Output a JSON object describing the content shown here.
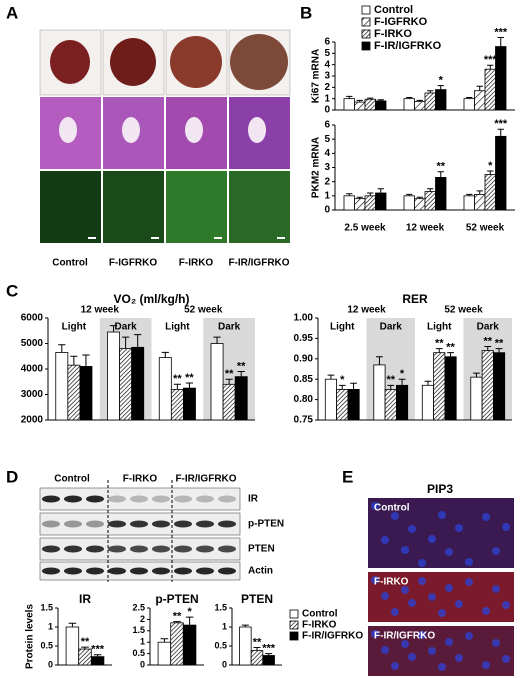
{
  "figure": {
    "panel_letters": [
      "A",
      "B",
      "C",
      "D",
      "E"
    ],
    "a_labels": [
      "Control",
      "F-IGFRKO",
      "F-IRKO",
      "F-IR/IGFRKO"
    ],
    "d_groups": [
      "Control",
      "F-IRKO",
      "F-IR/IGFRKO"
    ],
    "d_bands": [
      "IR",
      "p-PTEN",
      "PTEN",
      "Actin"
    ],
    "e_title": "PIP3",
    "e_labels": [
      "Control",
      "F-IRKO",
      "F-IR/IGFRKO"
    ]
  },
  "chart_data": [
    {
      "type": "bar",
      "y_label": "Ki67 mRNA",
      "ylim": [
        0,
        6
      ],
      "yticks": [
        0,
        1,
        2,
        3,
        4,
        5,
        6
      ],
      "legend": true,
      "series": [
        {
          "name": "Control",
          "color": "#ffffff",
          "values": [
            1.0,
            1.0,
            1.0
          ],
          "errors": [
            0.2,
            0.1,
            0.1
          ],
          "stars": [
            null,
            null,
            null
          ]
        },
        {
          "name": "F-IGFRKO",
          "color": "#ffffff",
          "pattern": "hatch-sparse",
          "values": [
            0.7,
            0.75,
            1.7
          ],
          "errors": [
            0.15,
            0.1,
            0.4
          ],
          "stars": [
            null,
            null,
            null
          ]
        },
        {
          "name": "F-IRKO",
          "color": "#ffffff",
          "pattern": "hatch-dense",
          "values": [
            0.95,
            1.5,
            3.6
          ],
          "errors": [
            0.1,
            0.2,
            0.35
          ],
          "stars": [
            null,
            null,
            "***"
          ]
        },
        {
          "name": "F-IR/IGFRKO",
          "color": "#000000",
          "values": [
            0.8,
            1.8,
            5.6
          ],
          "errors": [
            0.1,
            0.35,
            0.8
          ],
          "stars": [
            null,
            "*",
            "***"
          ]
        }
      ]
    },
    {
      "type": "bar",
      "y_label": "PKM2 mRNA",
      "categories": [
        "2.5 week",
        "12 week",
        "52 week"
      ],
      "ylim": [
        0,
        6
      ],
      "yticks": [
        0,
        1,
        2,
        3,
        4,
        5,
        6
      ],
      "series": [
        {
          "color": "#ffffff",
          "values": [
            1.0,
            1.0,
            1.0
          ],
          "errors": [
            0.15,
            0.1,
            0.1
          ],
          "stars": [
            null,
            null,
            null
          ]
        },
        {
          "color": "#ffffff",
          "pattern": "hatch-sparse",
          "values": [
            0.8,
            0.8,
            1.1
          ],
          "errors": [
            0.1,
            0.1,
            0.25
          ],
          "stars": [
            null,
            null,
            null
          ]
        },
        {
          "color": "#ffffff",
          "pattern": "hatch-dense",
          "values": [
            1.0,
            1.3,
            2.5
          ],
          "errors": [
            0.2,
            0.2,
            0.25
          ],
          "stars": [
            null,
            null,
            "*"
          ]
        },
        {
          "color": "#000000",
          "values": [
            1.2,
            2.3,
            5.2
          ],
          "errors": [
            0.3,
            0.4,
            0.5
          ],
          "stars": [
            null,
            "**",
            "***"
          ]
        }
      ]
    },
    {
      "type": "bar",
      "title": "VO₂ (ml/kg/h)",
      "categories": [
        "Light",
        "Dark",
        "Light",
        "Dark"
      ],
      "category_position": "top",
      "group_labels": [
        "12 week",
        "52 week"
      ],
      "shaded_categories": [
        false,
        true,
        false,
        true
      ],
      "ylim": [
        2000,
        6000
      ],
      "yticks": [
        2000,
        3000,
        4000,
        5000,
        6000
      ],
      "series": [
        {
          "color": "#ffffff",
          "values": [
            4650,
            5450,
            4450,
            5000
          ],
          "errors": [
            300,
            250,
            200,
            250
          ],
          "stars": [
            null,
            null,
            null,
            null
          ]
        },
        {
          "color": "#ffffff",
          "pattern": "hatch-dense",
          "values": [
            4150,
            4800,
            3200,
            3400
          ],
          "errors": [
            350,
            450,
            200,
            200
          ],
          "stars": [
            null,
            null,
            "**",
            "**"
          ]
        },
        {
          "color": "#000000",
          "values": [
            4100,
            4850,
            3250,
            3700
          ],
          "errors": [
            450,
            500,
            200,
            200
          ],
          "stars": [
            null,
            null,
            "**",
            "**"
          ]
        }
      ]
    },
    {
      "type": "bar",
      "title": "RER",
      "categories": [
        "Light",
        "Dark",
        "Light",
        "Dark"
      ],
      "category_position": "top",
      "group_labels": [
        "12 week",
        "52 week"
      ],
      "shaded_categories": [
        false,
        true,
        false,
        true
      ],
      "ylim": [
        0.75,
        1.0
      ],
      "yticks": [
        0.75,
        {
          "value": 0.8,
          "label": "0.80"
        },
        0.85,
        {
          "value": 0.9,
          "label": "0.90"
        },
        0.95,
        {
          "value": 1.0,
          "label": "1.00"
        }
      ],
      "series": [
        {
          "color": "#ffffff",
          "values": [
            0.85,
            0.885,
            0.835,
            0.855
          ],
          "errors": [
            0.01,
            0.02,
            0.01,
            0.01
          ],
          "stars": [
            null,
            null,
            null,
            null
          ]
        },
        {
          "color": "#ffffff",
          "pattern": "hatch-dense",
          "values": [
            0.825,
            0.825,
            0.915,
            0.92
          ],
          "errors": [
            0.01,
            0.01,
            0.01,
            0.01
          ],
          "stars": [
            "*",
            "**",
            "**",
            "**"
          ]
        },
        {
          "color": "#000000",
          "values": [
            0.825,
            0.835,
            0.905,
            0.915
          ],
          "errors": [
            0.015,
            0.015,
            0.01,
            0.01
          ],
          "stars": [
            null,
            "*",
            "**",
            "**"
          ]
        }
      ]
    },
    {
      "type": "bar",
      "title": "IR",
      "y_label": "Protein levels",
      "ylim": [
        0,
        1.5
      ],
      "yticks": [
        0,
        0.5,
        1,
        1.5
      ],
      "series": [
        {
          "color": "#ffffff",
          "values": [
            1.0
          ],
          "errors": [
            0.1
          ],
          "stars": [
            null
          ]
        },
        {
          "color": "#ffffff",
          "pattern": "hatch-dense",
          "values": [
            0.42
          ],
          "errors": [
            0.05
          ],
          "stars": [
            "**"
          ]
        },
        {
          "color": "#000000",
          "values": [
            0.22
          ],
          "errors": [
            0.05
          ],
          "stars": [
            "***"
          ]
        }
      ]
    },
    {
      "type": "bar",
      "title": "p-PTEN",
      "ylim": [
        0,
        2.5
      ],
      "yticks": [
        0,
        0.5,
        1,
        1.5,
        2,
        2.5
      ],
      "series": [
        {
          "color": "#ffffff",
          "values": [
            1.0
          ],
          "errors": [
            0.15
          ],
          "stars": [
            null
          ]
        },
        {
          "color": "#ffffff",
          "pattern": "hatch-dense",
          "values": [
            1.85
          ],
          "errors": [
            0.05
          ],
          "stars": [
            "**"
          ]
        },
        {
          "color": "#000000",
          "values": [
            1.75
          ],
          "errors": [
            0.35
          ],
          "stars": [
            "*"
          ]
        }
      ]
    },
    {
      "type": "bar",
      "title": "PTEN",
      "ylim": [
        0,
        1.5
      ],
      "yticks": [
        0,
        0.5,
        1,
        1.5
      ],
      "legend": true,
      "series": [
        {
          "name": "Control",
          "color": "#ffffff",
          "values": [
            1.0
          ],
          "errors": [
            0.05
          ],
          "stars": [
            null
          ]
        },
        {
          "name": "F-IRKO",
          "color": "#ffffff",
          "pattern": "hatch-dense",
          "values": [
            0.38
          ],
          "errors": [
            0.08
          ],
          "stars": [
            "**"
          ]
        },
        {
          "name": "F-IR/IGFRKO",
          "color": "#000000",
          "values": [
            0.25
          ],
          "errors": [
            0.05
          ],
          "stars": [
            "***"
          ]
        }
      ]
    }
  ]
}
